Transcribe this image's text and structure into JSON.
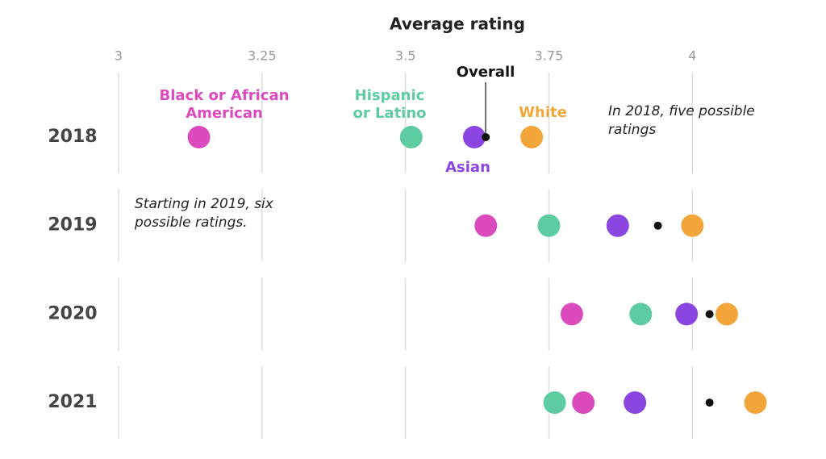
{
  "chart_data": {
    "type": "dot",
    "title": "Average rating",
    "categories": [
      "2018",
      "2019",
      "2020",
      "2021"
    ],
    "xlim": [
      3,
      4.15
    ],
    "xticks": [
      3,
      3.25,
      3.5,
      3.75,
      4
    ],
    "grid": true,
    "series": [
      {
        "name": "Black or African American",
        "color": "#db4bbd",
        "values": [
          3.14,
          3.64,
          3.79,
          3.81
        ]
      },
      {
        "name": "Hispanic or Latino",
        "color": "#5dcca0",
        "values": [
          3.51,
          3.75,
          3.91,
          3.76
        ]
      },
      {
        "name": "Asian",
        "color": "#8b45e0",
        "values": [
          3.62,
          3.87,
          3.99,
          3.9
        ]
      },
      {
        "name": "Overall",
        "color": "#111111",
        "values": [
          3.64,
          3.94,
          4.03,
          4.03
        ]
      },
      {
        "name": "White",
        "color": "#f2a63a",
        "values": [
          3.72,
          4.0,
          4.06,
          4.11
        ]
      }
    ],
    "annotations": [
      "In 2018, five possible ratings",
      "Starting in 2019, six possible ratings."
    ]
  }
}
